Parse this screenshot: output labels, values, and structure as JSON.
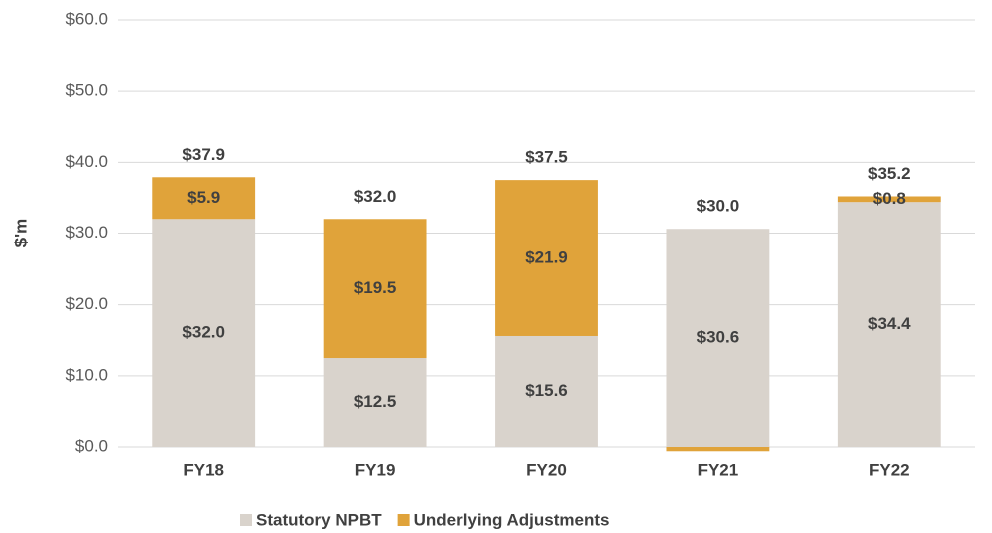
{
  "chart_data": {
    "type": "stacked_bar",
    "y_label": "$'m",
    "categories": [
      "FY18",
      "FY19",
      "FY20",
      "FY21",
      "FY22"
    ],
    "series": [
      {
        "name": "Statutory NPBT",
        "color": "#d9d3cc",
        "values": [
          32.0,
          12.5,
          15.6,
          30.6,
          34.4
        ],
        "value_labels": [
          "$32.0",
          "$12.5",
          "$15.6",
          "$30.6",
          "$34.4"
        ]
      },
      {
        "name": "Underlying Adjustments",
        "color": "#e0a33a",
        "values": [
          5.9,
          19.5,
          21.9,
          -0.6,
          0.8
        ],
        "value_labels": [
          "$5.9",
          "$19.5",
          "$21.9",
          null,
          "$0.8"
        ]
      }
    ],
    "totals": [
      37.9,
      32.0,
      37.5,
      30.0,
      35.2
    ],
    "total_labels": [
      "$37.9",
      "$32.0",
      "$37.5",
      "$30.0",
      "$35.2"
    ],
    "ylim": [
      0,
      60
    ],
    "yticks": [
      {
        "value": 0,
        "label": "$0.0"
      },
      {
        "value": 10,
        "label": "$10.0"
      },
      {
        "value": 20,
        "label": "$20.0"
      },
      {
        "value": 30,
        "label": "$30.0"
      },
      {
        "value": 40,
        "label": "$40.0"
      },
      {
        "value": 50,
        "label": "$50.0"
      },
      {
        "value": 60,
        "label": "$60.0"
      }
    ],
    "grid": true,
    "legend": "bottom"
  }
}
